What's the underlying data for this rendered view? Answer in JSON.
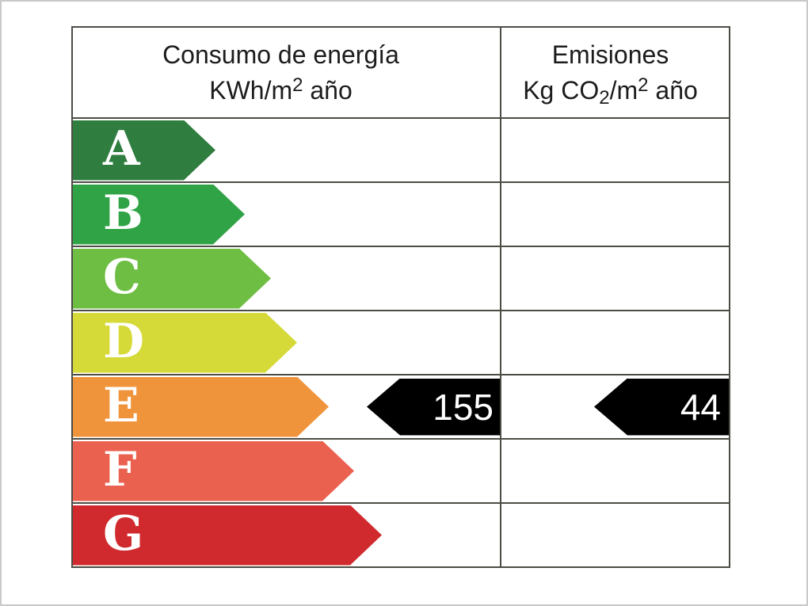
{
  "header": {
    "consumo_title": "Consumo de energía",
    "consumo_unit": {
      "prefix": "KWh/m",
      "exp": "2",
      "suffix": " año"
    },
    "emisiones_title": "Emisiones",
    "emisiones_unit": {
      "prefix": "Kg CO",
      "sub": "2",
      "mid": "/m",
      "exp": "2",
      "suffix": " año"
    }
  },
  "chart_data": {
    "type": "bar",
    "title": "Etiqueta de eficiencia energética (escala A-G)",
    "columns": [
      {
        "label": "Consumo de energía KWh/m2 año"
      },
      {
        "label": "Emisiones Kg CO2/m2 año"
      }
    ],
    "categories": [
      "A",
      "B",
      "C",
      "D",
      "E",
      "F",
      "G"
    ],
    "bars": [
      {
        "letter": "A",
        "color": "#2f7d3f"
      },
      {
        "letter": "B",
        "color": "#30a346"
      },
      {
        "letter": "C",
        "color": "#6fbe44"
      },
      {
        "letter": "D",
        "color": "#d6da39"
      },
      {
        "letter": "E",
        "color": "#f0943c"
      },
      {
        "letter": "F",
        "color": "#eb6150"
      },
      {
        "letter": "G",
        "color": "#d02a2e"
      }
    ],
    "indicators": {
      "rating_row": "E",
      "arrow_color": "#000000",
      "consumo": {
        "value": "155"
      },
      "emisiones": {
        "value": "44"
      }
    }
  }
}
